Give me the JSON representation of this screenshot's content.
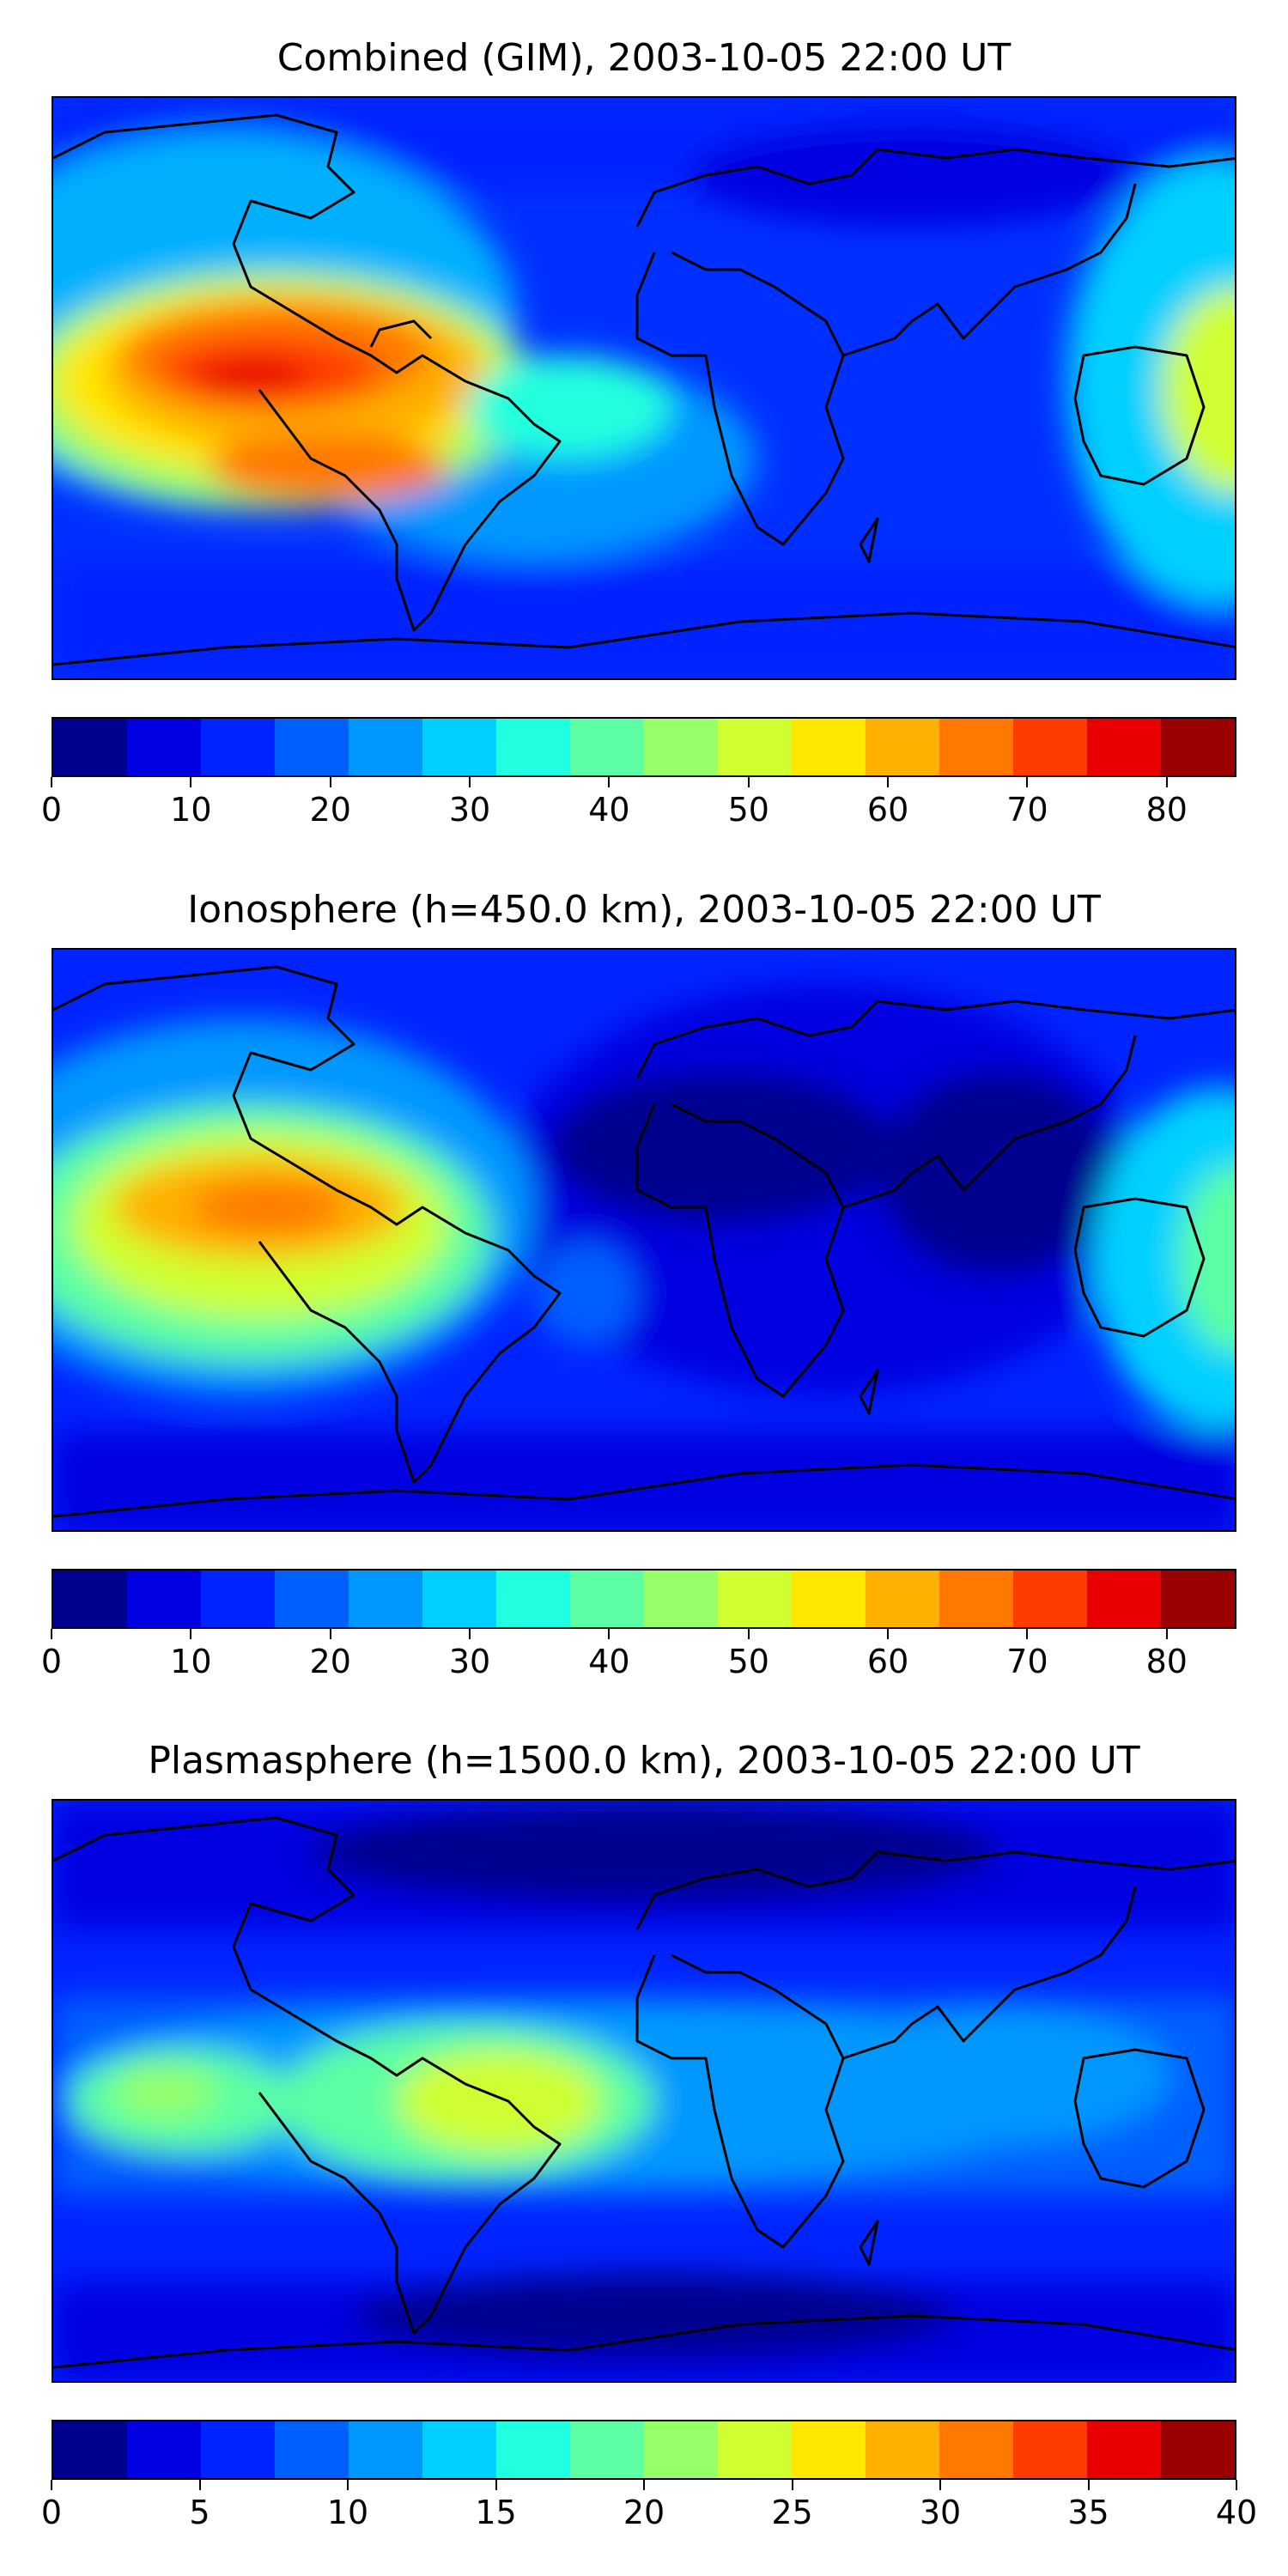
{
  "panels": [
    {
      "title": "Combined (GIM), 2003-10-05 22:00 UT",
      "colorbar": {
        "min": 0,
        "max": 85,
        "ticks": [
          "0",
          "10",
          "20",
          "30",
          "40",
          "50",
          "60",
          "70",
          "80"
        ],
        "tick_values": [
          0,
          10,
          20,
          30,
          40,
          50,
          60,
          70,
          80
        ]
      }
    },
    {
      "title": "Ionosphere  (h=450.0 km), 2003-10-05 22:00 UT",
      "colorbar": {
        "min": 0,
        "max": 85,
        "ticks": [
          "0",
          "10",
          "20",
          "30",
          "40",
          "50",
          "60",
          "70",
          "80"
        ],
        "tick_values": [
          0,
          10,
          20,
          30,
          40,
          50,
          60,
          70,
          80
        ]
      }
    },
    {
      "title": "Plasmasphere (h=1500.0 km), 2003-10-05 22:00 UT",
      "colorbar": {
        "min": 0,
        "max": 40,
        "ticks": [
          "0",
          "5",
          "10",
          "15",
          "20",
          "25",
          "30",
          "35",
          "40"
        ],
        "tick_values": [
          0,
          5,
          10,
          15,
          20,
          25,
          30,
          35,
          40
        ]
      }
    }
  ],
  "colormap": [
    "#00008f",
    "#0000e0",
    "#0024ff",
    "#0060ff",
    "#0098ff",
    "#00d0ff",
    "#20ffdf",
    "#5cffa3",
    "#97ff68",
    "#cfff30",
    "#ffe800",
    "#ffb000",
    "#ff7800",
    "#ff3c00",
    "#e80000",
    "#9a0000"
  ],
  "colors": {
    "background_low": "#0018e8",
    "coastline": "#000000"
  }
}
